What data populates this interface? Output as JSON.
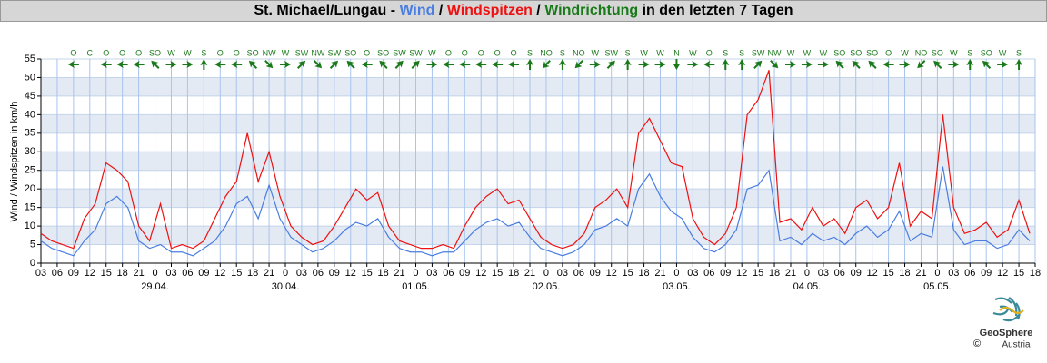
{
  "chart_data": {
    "type": "line",
    "title_parts": [
      "St. Michael/Lungau - ",
      "Wind",
      " / ",
      "Windspitzen",
      " / ",
      "Windrichtung",
      " in den letzten 7 Tagen"
    ],
    "y_label": "Wind / Windspitzen in km/h",
    "x": [
      0,
      2,
      4,
      6,
      8,
      10,
      12,
      14,
      16,
      18,
      20,
      22,
      24,
      26,
      28,
      30,
      32,
      34,
      36,
      38,
      40,
      42,
      44,
      46,
      48,
      50,
      52,
      54,
      56,
      58,
      60,
      62,
      64,
      66,
      68,
      70,
      72,
      74,
      76,
      78,
      80,
      82,
      84,
      86,
      88,
      90,
      92,
      94,
      96,
      98,
      100,
      102,
      104,
      106,
      108,
      110,
      112,
      114,
      116,
      118,
      120,
      122,
      124,
      126,
      128,
      130,
      132,
      134,
      136,
      138,
      140,
      142,
      144,
      146,
      148,
      150,
      152,
      154,
      156,
      158,
      160,
      162,
      164,
      166,
      168,
      170,
      172,
      174,
      176,
      178,
      180,
      182
    ],
    "series": [
      {
        "name": "Wind",
        "color": "#4a7de0",
        "values": [
          6,
          4,
          3,
          2,
          6,
          9,
          16,
          18,
          15,
          6,
          4,
          5,
          3,
          3,
          2,
          4,
          6,
          10,
          16,
          18,
          12,
          21,
          12,
          7,
          5,
          3,
          4,
          6,
          9,
          11,
          10,
          12,
          7,
          4,
          3,
          3,
          2,
          3,
          3,
          6,
          9,
          11,
          12,
          10,
          11,
          7,
          4,
          3,
          2,
          3,
          5,
          9,
          10,
          12,
          10,
          20,
          24,
          18,
          14,
          12,
          7,
          4,
          3,
          5,
          9,
          20,
          21,
          25,
          6,
          7,
          5,
          8,
          6,
          7,
          5,
          8,
          10,
          7,
          9,
          14,
          6,
          8,
          7,
          26,
          9,
          5,
          6,
          6,
          4,
          5,
          9,
          6
        ]
      },
      {
        "name": "Windspitzen",
        "color": "#ee1111",
        "values": [
          8,
          6,
          5,
          4,
          12,
          16,
          27,
          25,
          22,
          10,
          6,
          16,
          4,
          5,
          4,
          6,
          12,
          18,
          22,
          35,
          22,
          30,
          18,
          10,
          7,
          5,
          6,
          10,
          15,
          20,
          17,
          19,
          10,
          6,
          5,
          4,
          4,
          5,
          4,
          10,
          15,
          18,
          20,
          16,
          17,
          12,
          7,
          5,
          4,
          5,
          8,
          15,
          17,
          20,
          15,
          35,
          39,
          33,
          27,
          26,
          12,
          7,
          5,
          8,
          15,
          40,
          44,
          52,
          11,
          12,
          9,
          15,
          10,
          12,
          8,
          15,
          17,
          12,
          15,
          27,
          10,
          14,
          12,
          40,
          15,
          8,
          9,
          11,
          7,
          9,
          17,
          8
        ]
      }
    ],
    "wind_direction": {
      "name": "Windrichtung",
      "color": "#1a7a1a",
      "x": [
        6,
        9,
        12,
        15,
        18,
        21,
        24,
        27,
        30,
        33,
        36,
        39,
        42,
        45,
        48,
        51,
        54,
        57,
        60,
        63,
        66,
        69,
        72,
        75,
        78,
        81,
        84,
        87,
        90,
        93,
        96,
        99,
        102,
        105,
        108,
        111,
        114,
        117,
        120,
        123,
        126,
        129,
        132,
        135,
        138,
        141,
        144,
        147,
        150,
        153,
        156,
        159,
        162,
        165,
        168,
        171,
        174,
        177,
        180
      ],
      "labels": [
        "O",
        "C",
        "O",
        "O",
        "O",
        "SO",
        "W",
        "W",
        "S",
        "O",
        "O",
        "SO",
        "NW",
        "W",
        "SW",
        "NW",
        "SW",
        "SO",
        "O",
        "SO",
        "SW",
        "SW",
        "W",
        "O",
        "O",
        "O",
        "O",
        "O",
        "S",
        "NO",
        "S",
        "NO",
        "W",
        "SW",
        "S",
        "W",
        "W",
        "N",
        "W",
        "O",
        "S",
        "S",
        "SW",
        "NW",
        "W",
        "W",
        "W",
        "SO",
        "SO",
        "SO",
        "O",
        "W",
        "NO",
        "SO",
        "W",
        "S",
        "SO",
        "W",
        "S"
      ]
    },
    "xlim": [
      0,
      183
    ],
    "xticks": [
      {
        "value": 0,
        "label": "03"
      },
      {
        "value": 3,
        "label": "06"
      },
      {
        "value": 6,
        "label": "09"
      },
      {
        "value": 9,
        "label": "12"
      },
      {
        "value": 12,
        "label": "15"
      },
      {
        "value": 15,
        "label": "18"
      },
      {
        "value": 18,
        "label": "21"
      },
      {
        "value": 21,
        "label": "0"
      },
      {
        "value": 24,
        "label": "03"
      },
      {
        "value": 27,
        "label": "06"
      },
      {
        "value": 30,
        "label": "09"
      },
      {
        "value": 33,
        "label": "12"
      },
      {
        "value": 36,
        "label": "15"
      },
      {
        "value": 39,
        "label": "18"
      },
      {
        "value": 42,
        "label": "21"
      },
      {
        "value": 45,
        "label": "0"
      },
      {
        "value": 48,
        "label": "03"
      },
      {
        "value": 51,
        "label": "06"
      },
      {
        "value": 54,
        "label": "09"
      },
      {
        "value": 57,
        "label": "12"
      },
      {
        "value": 60,
        "label": "15"
      },
      {
        "value": 63,
        "label": "18"
      },
      {
        "value": 66,
        "label": "21"
      },
      {
        "value": 69,
        "label": "0"
      },
      {
        "value": 72,
        "label": "03"
      },
      {
        "value": 75,
        "label": "06"
      },
      {
        "value": 78,
        "label": "09"
      },
      {
        "value": 81,
        "label": "12"
      },
      {
        "value": 84,
        "label": "15"
      },
      {
        "value": 87,
        "label": "18"
      },
      {
        "value": 90,
        "label": "21"
      },
      {
        "value": 93,
        "label": "0"
      },
      {
        "value": 96,
        "label": "03"
      },
      {
        "value": 99,
        "label": "06"
      },
      {
        "value": 102,
        "label": "09"
      },
      {
        "value": 105,
        "label": "12"
      },
      {
        "value": 108,
        "label": "15"
      },
      {
        "value": 111,
        "label": "18"
      },
      {
        "value": 114,
        "label": "21"
      },
      {
        "value": 117,
        "label": "0"
      },
      {
        "value": 120,
        "label": "03"
      },
      {
        "value": 123,
        "label": "06"
      },
      {
        "value": 126,
        "label": "09"
      },
      {
        "value": 129,
        "label": "12"
      },
      {
        "value": 132,
        "label": "15"
      },
      {
        "value": 135,
        "label": "18"
      },
      {
        "value": 138,
        "label": "21"
      },
      {
        "value": 141,
        "label": "0"
      },
      {
        "value": 144,
        "label": "03"
      },
      {
        "value": 147,
        "label": "06"
      },
      {
        "value": 150,
        "label": "09"
      },
      {
        "value": 153,
        "label": "12"
      },
      {
        "value": 156,
        "label": "15"
      },
      {
        "value": 159,
        "label": "18"
      },
      {
        "value": 162,
        "label": "21"
      },
      {
        "value": 165,
        "label": "0"
      },
      {
        "value": 168,
        "label": "03"
      },
      {
        "value": 171,
        "label": "06"
      },
      {
        "value": 174,
        "label": "09"
      },
      {
        "value": 177,
        "label": "12"
      },
      {
        "value": 180,
        "label": "15"
      },
      {
        "value": 183,
        "label": "18"
      }
    ],
    "date_labels": [
      {
        "value": 21,
        "label": "29.04."
      },
      {
        "value": 45,
        "label": "30.04."
      },
      {
        "value": 69,
        "label": "01.05."
      },
      {
        "value": 93,
        "label": "02.05."
      },
      {
        "value": 117,
        "label": "03.05."
      },
      {
        "value": 141,
        "label": "04.05."
      },
      {
        "value": 165,
        "label": "05.05."
      }
    ],
    "ylim": [
      0,
      55
    ],
    "yticks": [
      0,
      5,
      10,
      15,
      20,
      25,
      30,
      35,
      40,
      45,
      50,
      55
    ],
    "grid": true,
    "logo": {
      "copyright": "©",
      "name": "GeoSphere",
      "country": "Austria"
    }
  }
}
